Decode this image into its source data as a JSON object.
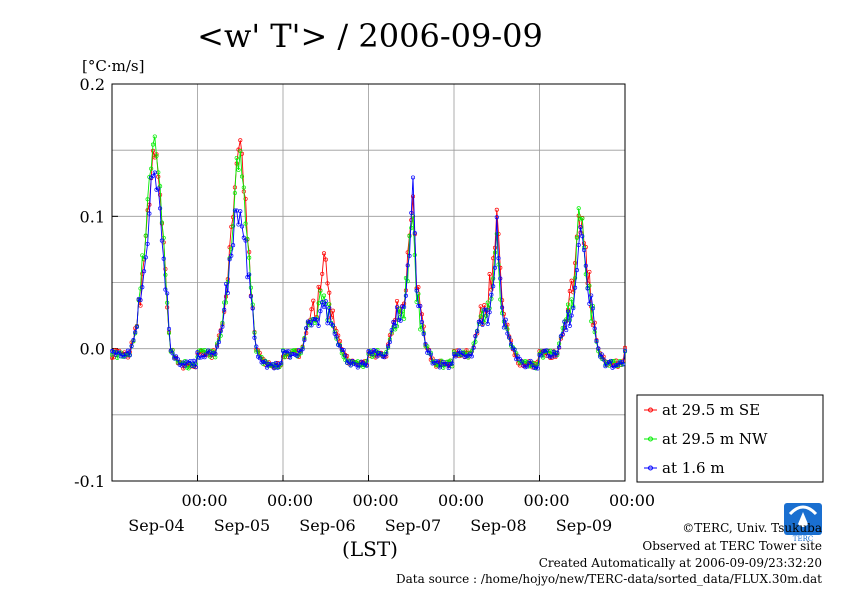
{
  "chart_data": {
    "type": "line",
    "title": "<w' T'> / 2006-09-09",
    "ylabel": "[°C·m/s]",
    "xlabel": "(LST)",
    "ylim": [
      -0.1,
      0.2
    ],
    "y_ticks": [
      "-0.1",
      "0.0",
      "0.1",
      "0.2"
    ],
    "y_tick_values": [
      -0.1,
      0.0,
      0.1,
      0.2
    ],
    "x_range_days": [
      0,
      6
    ],
    "time_tick_label": "00:00",
    "x_ticks": [
      {
        "day": 1,
        "time": "00:00",
        "date": "Sep-04"
      },
      {
        "day": 2,
        "time": "00:00",
        "date": "Sep-05"
      },
      {
        "day": 3,
        "time": "00:00",
        "date": "Sep-06"
      },
      {
        "day": 4,
        "time": "00:00",
        "date": "Sep-07"
      },
      {
        "day": 5,
        "time": "00:00",
        "date": "Sep-08"
      },
      {
        "day": 6,
        "time": "00:00",
        "date": "Sep-09"
      }
    ],
    "grid": true,
    "legend_position": "right",
    "series": [
      {
        "name": "at 29.5 m SE",
        "color": "#ff0000"
      },
      {
        "name": "at 29.5 m NW",
        "color": "#00ee00"
      },
      {
        "name": "at 1.6 m",
        "color": "#0000ff"
      }
    ],
    "daily_peaks": [
      {
        "day": 0,
        "x": [
          0.42,
          0.46,
          0.5,
          0.55
        ],
        "SE": [
          0.1,
          0.135,
          0.15,
          0.13
        ],
        "NW": [
          0.11,
          0.14,
          0.15,
          0.14
        ],
        "low": [
          0.09,
          0.14,
          0.13,
          0.12
        ]
      },
      {
        "day": 1,
        "x": [
          0.42,
          0.46,
          0.5,
          0.55
        ],
        "SE": [
          0.11,
          0.15,
          0.16,
          0.12
        ],
        "NW": [
          0.1,
          0.14,
          0.15,
          0.11
        ],
        "low": [
          0.09,
          0.1,
          0.1,
          0.08
        ]
      },
      {
        "day": 2,
        "x": [
          0.4,
          0.44,
          0.48,
          0.55
        ],
        "SE": [
          0.03,
          0.05,
          0.07,
          0.03
        ],
        "NW": [
          0.02,
          0.04,
          0.05,
          0.02
        ],
        "low": [
          0.02,
          0.03,
          0.04,
          0.02
        ]
      },
      {
        "day": 3,
        "x": [
          0.42,
          0.48,
          0.52,
          0.56
        ],
        "SE": [
          0.04,
          0.09,
          0.12,
          0.05
        ],
        "NW": [
          0.03,
          0.08,
          0.1,
          0.04
        ],
        "low": [
          0.03,
          0.08,
          0.125,
          0.04
        ]
      },
      {
        "day": 4,
        "x": [
          0.4,
          0.46,
          0.5,
          0.56
        ],
        "SE": [
          0.04,
          0.06,
          0.105,
          0.04
        ],
        "NW": [
          0.03,
          0.05,
          0.085,
          0.03
        ],
        "low": [
          0.03,
          0.05,
          0.09,
          0.03
        ]
      },
      {
        "day": 5,
        "x": [
          0.4,
          0.46,
          0.52,
          0.56
        ],
        "SE": [
          0.05,
          0.1,
          0.09,
          0.06
        ],
        "NW": [
          0.04,
          0.105,
          0.08,
          0.05
        ],
        "low": [
          0.03,
          0.09,
          0.08,
          0.05
        ]
      }
    ]
  },
  "footer": {
    "copyright": "©TERC, Univ. Tsukuba",
    "observed": "Observed at TERC Tower site",
    "created": "Created Automatically at 2006-09-09/23:32:20",
    "source": "Data source : /home/hojyo/new/TERC-data/sorted_data/FLUX.30m.dat"
  },
  "logo": {
    "text": "TERC",
    "color": "#1a6fd0"
  }
}
